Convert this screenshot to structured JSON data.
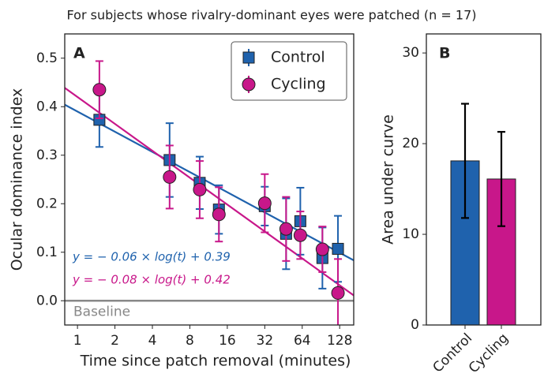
{
  "title": "For subjects whose rivalry-dominant eyes were patched (n = 17)",
  "chart_data": [
    {
      "type": "scatter",
      "panel": "A",
      "xlabel": "Time since patch removal (minutes)",
      "ylabel": "Ocular dominance index",
      "xscale": "log2",
      "xlim": [
        0.79,
        166
      ],
      "ylim": [
        -0.05,
        0.55
      ],
      "xticks": [
        1,
        2,
        4,
        8,
        16,
        32,
        64,
        128
      ],
      "yticks": [
        {
          "value": 0,
          "label": "0.0"
        },
        0.1,
        0.2,
        0.3,
        0.4,
        0.5
      ],
      "legend": "upper right",
      "baseline": {
        "value": 0,
        "label": "Baseline",
        "color": "#888888"
      },
      "series": [
        {
          "name": "Control",
          "color": "#1f62ad",
          "marker": "square",
          "x": [
            1.5,
            5.5,
            9.6,
            13.7,
            32,
            47.5,
            61.8,
            93,
            124
          ],
          "values": [
            0.373,
            0.29,
            0.243,
            0.188,
            0.195,
            0.138,
            0.164,
            0.088,
            0.107
          ],
          "errors": [
            0.056,
            0.076,
            0.054,
            0.05,
            0.04,
            0.073,
            0.069,
            0.063,
            0.068
          ],
          "fit": {
            "slope": -0.06,
            "intercept": 0.39,
            "label": "y = − 0.06 × log(t) + 0.39"
          }
        },
        {
          "name": "Cycling",
          "color": "#c8178a",
          "marker": "circle",
          "x": [
            1.5,
            5.5,
            9.6,
            13.7,
            32,
            47.5,
            61.8,
            93,
            124
          ],
          "values": [
            0.435,
            0.255,
            0.229,
            0.178,
            0.201,
            0.148,
            0.135,
            0.106,
            0.016
          ],
          "errors": [
            0.059,
            0.065,
            0.059,
            0.056,
            0.06,
            0.066,
            0.049,
            0.047,
            0.07
          ],
          "fit": {
            "slope": -0.08,
            "intercept": 0.42,
            "label": "y = − 0.08 × log(t) + 0.42"
          }
        }
      ]
    },
    {
      "type": "bar",
      "panel": "B",
      "ylabel": "Area under curve",
      "categories": [
        "Control",
        "Cycling"
      ],
      "values": [
        18.1,
        16.1
      ],
      "errors": [
        6.3,
        5.2
      ],
      "colors": [
        "#1f62ad",
        "#c8178a"
      ],
      "ylim": [
        0,
        32.1
      ],
      "yticks": [
        0,
        10,
        20,
        30
      ]
    }
  ]
}
